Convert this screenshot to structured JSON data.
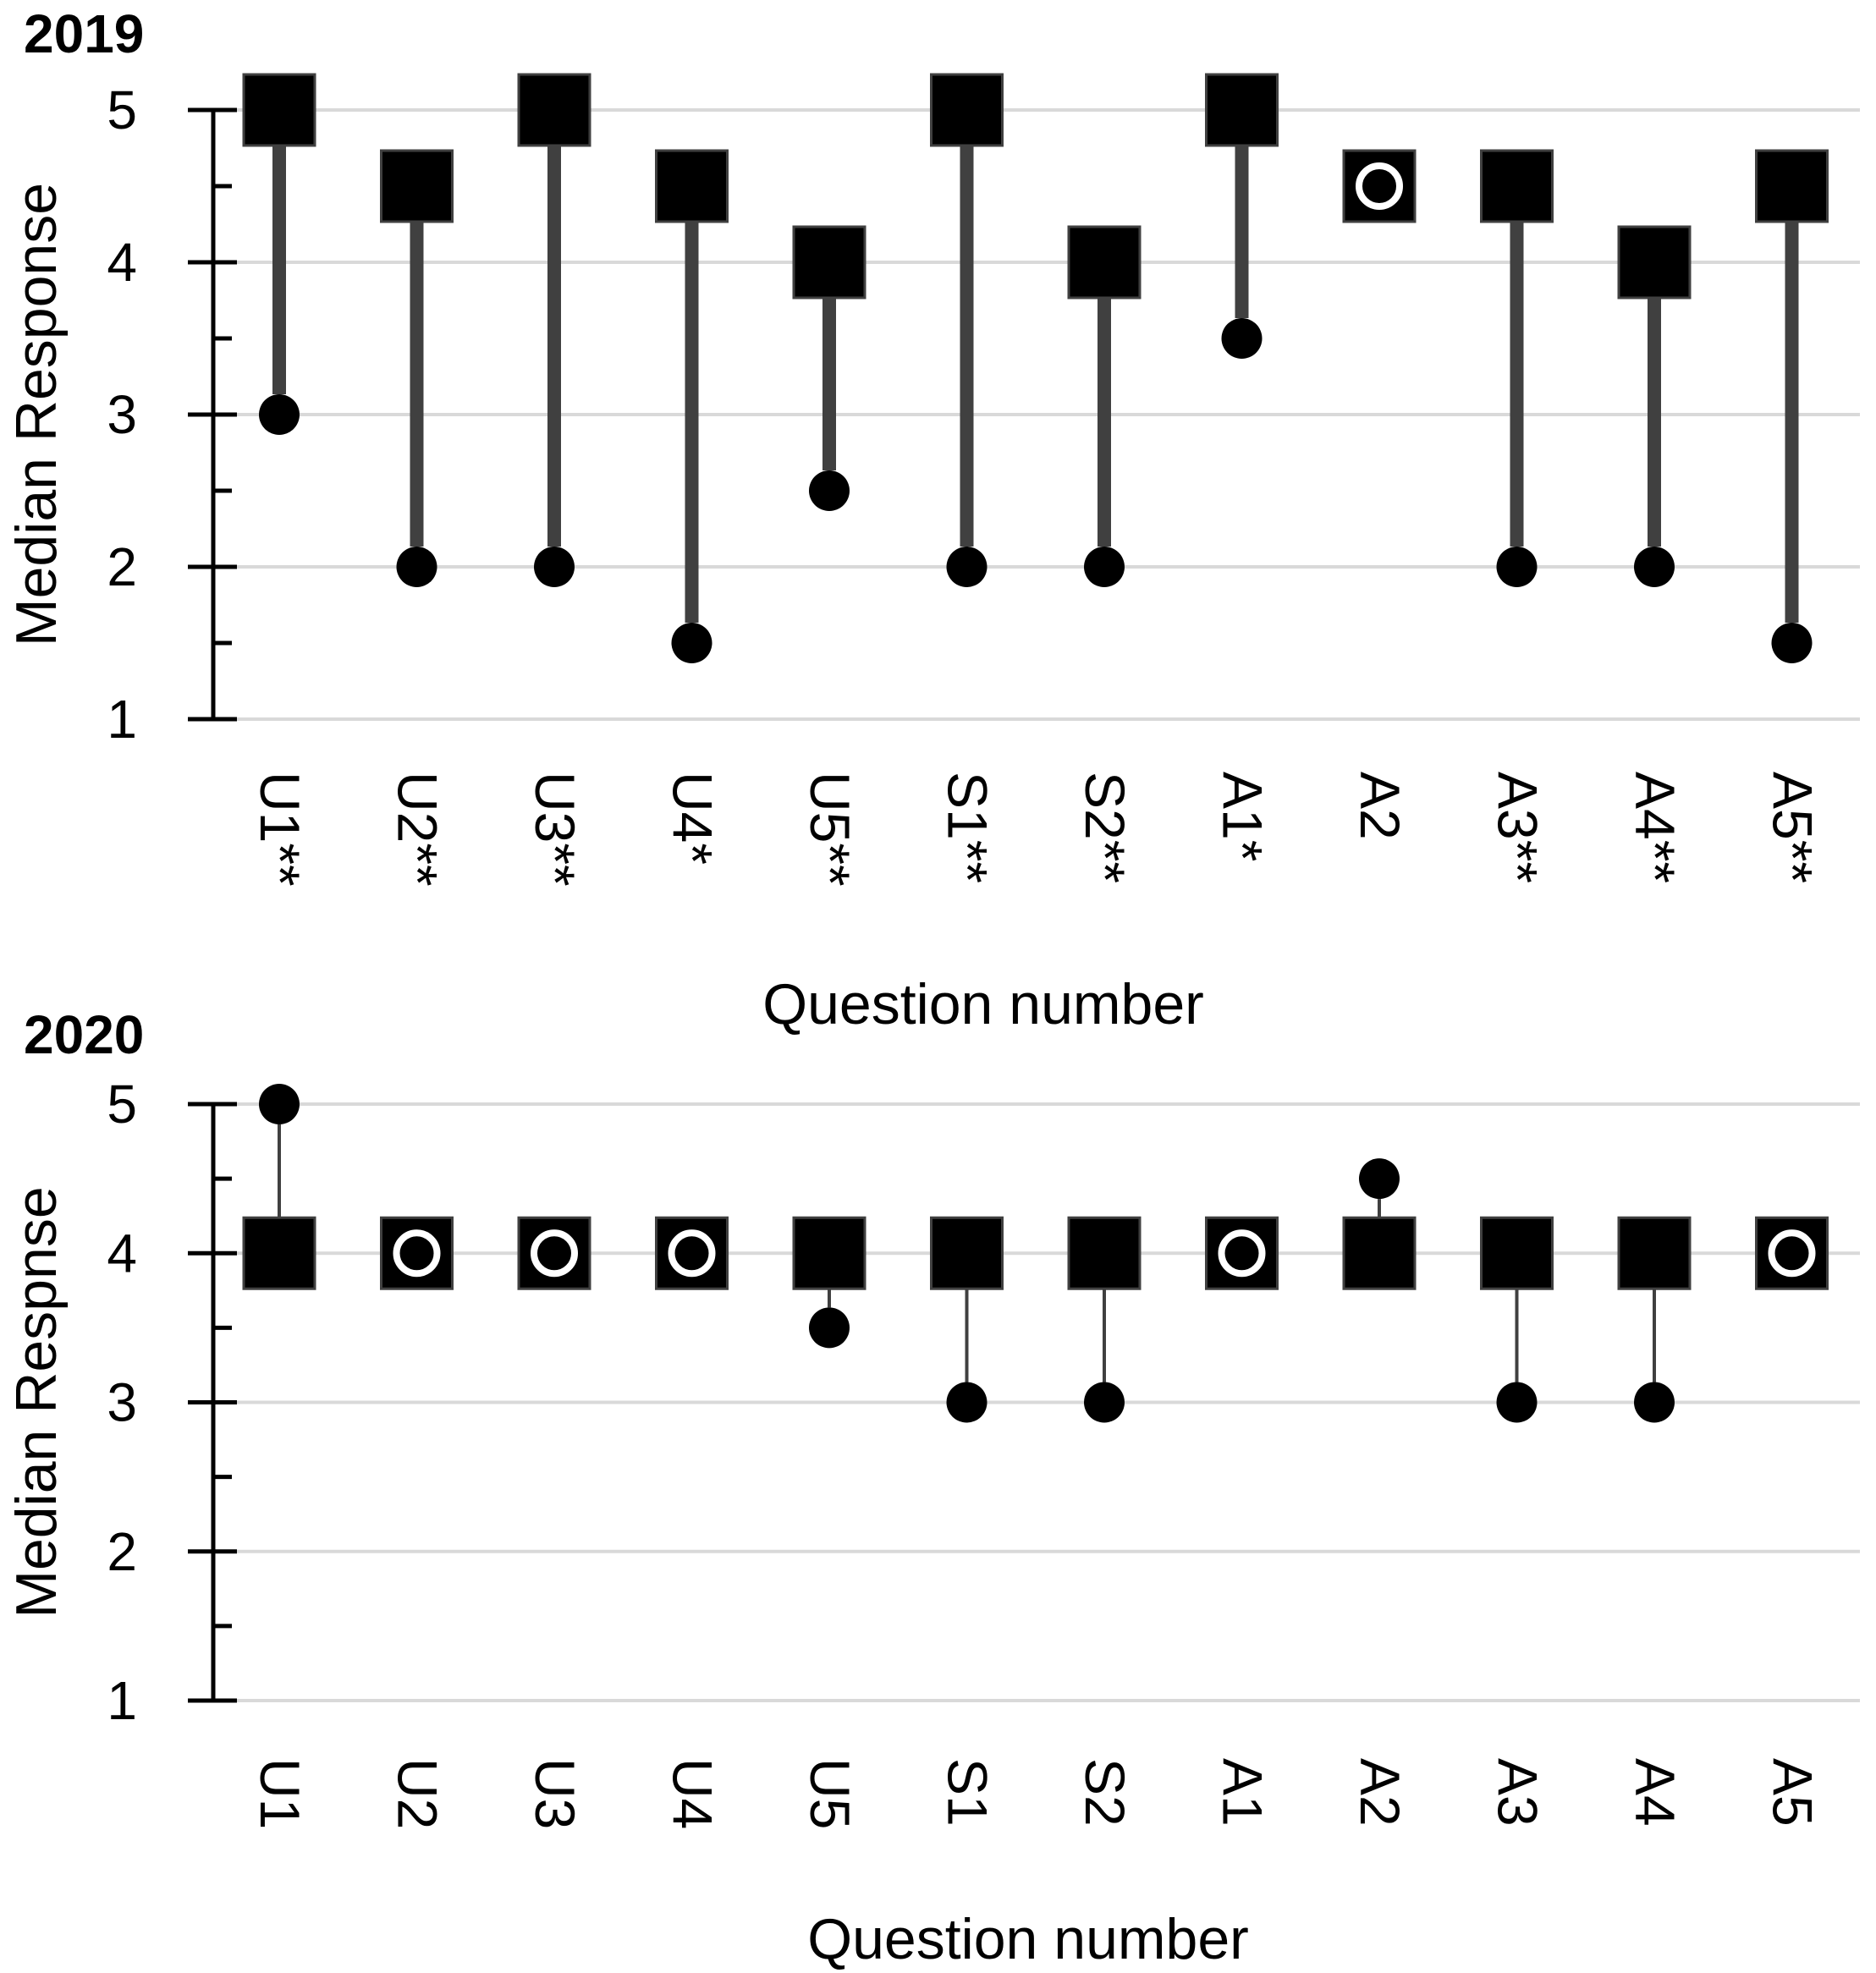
{
  "chart_data": [
    {
      "type": "dot-plot",
      "title": "2019",
      "xlabel": "Question number",
      "ylabel": "Median Response",
      "ylim": [
        1,
        5
      ],
      "yticks": [
        1,
        2,
        3,
        4,
        5
      ],
      "grid": true,
      "categories": [
        "U1**",
        "U2**",
        "U3**",
        "U4*",
        "U5**",
        "S1**",
        "S2**",
        "A1*",
        "A2",
        "A3**",
        "A4**",
        "A5**"
      ],
      "series": [
        {
          "marker": "square",
          "values": [
            5,
            4.5,
            5,
            4.5,
            4,
            5,
            4,
            5,
            4.5,
            4.5,
            4,
            4.5
          ]
        },
        {
          "marker": "circle",
          "values": [
            3,
            2,
            2,
            1.5,
            2.5,
            2,
            2,
            3.5,
            4.5,
            2,
            2,
            1.5
          ]
        }
      ]
    },
    {
      "type": "dot-plot",
      "title": "2020",
      "xlabel": "Question number",
      "ylabel": "Median Respnse",
      "ylim": [
        1,
        5
      ],
      "yticks": [
        1,
        2,
        3,
        4,
        5
      ],
      "grid": true,
      "categories": [
        "U1",
        "U2",
        "U3",
        "U4",
        "U5",
        "S1",
        "S2",
        "A1",
        "A2",
        "A3",
        "A4",
        "A5"
      ],
      "series": [
        {
          "marker": "square",
          "values": [
            4,
            4,
            4,
            4,
            4,
            4,
            4,
            4,
            4,
            4,
            4,
            4
          ]
        },
        {
          "marker": "circle",
          "values": [
            5,
            4,
            4,
            4,
            3.5,
            3,
            3,
            4,
            4.5,
            3,
            3,
            4
          ]
        }
      ]
    }
  ]
}
